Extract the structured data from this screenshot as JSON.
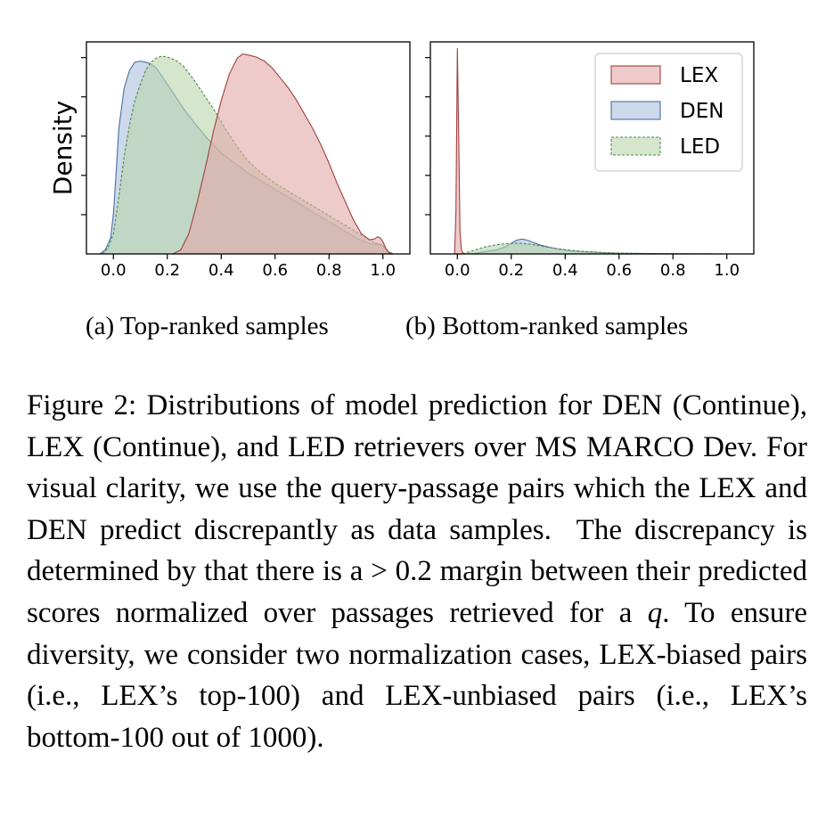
{
  "subcaptions": {
    "a": "(a) Top-ranked samples",
    "b": "(b) Bottom-ranked samples"
  },
  "caption": {
    "label": "Figure 2:",
    "text1": " Distributions of model prediction for DEN (Continue), LEX (Continue), and LED retrievers over MS MARCO Dev. For visual clarity, we use the query-passage pairs which the LEX and DEN predict discrepantly as data samples.  The discrepancy is determined by that there is a > 0.2 margin between their predicted scores normalized over passages retrieved for a ",
    "q": "q",
    "text2": ". To ensure diversity, we consider two normalization cases, LEX-biased pairs (i.e., LEX’s top-100) and LEX-unbiased pairs (i.e., LEX’s bottom-100 out of 1000)."
  },
  "colors": {
    "LEX": "#e3a9a9",
    "LEX_edge": "#a04040",
    "DEN": "#a9bfdc",
    "DEN_edge": "#4a6fa5",
    "LED": "#b9d6ac",
    "LED_edge": "#4f8a45"
  },
  "chart_data": [
    {
      "type": "area",
      "ylabel": "Density",
      "xlabel": "",
      "xlim": [
        -0.1,
        1.1
      ],
      "ylim": [
        0,
        1.05
      ],
      "xticks": [
        "0.0",
        "0.2",
        "0.4",
        "0.6",
        "0.8",
        "1.0"
      ],
      "yticks_labeled": false,
      "legend": "none",
      "series": [
        {
          "name": "LEX",
          "style": "solid",
          "x": [
            0.22,
            0.25,
            0.28,
            0.31,
            0.34,
            0.37,
            0.4,
            0.43,
            0.46,
            0.48,
            0.5,
            0.53,
            0.56,
            0.59,
            0.62,
            0.65,
            0.68,
            0.71,
            0.74,
            0.77,
            0.8,
            0.83,
            0.86,
            0.89,
            0.92,
            0.95,
            0.97,
            0.98,
            0.99,
            1.0,
            1.01,
            1.02,
            1.03
          ],
          "y": [
            0.0,
            0.02,
            0.1,
            0.25,
            0.42,
            0.6,
            0.76,
            0.89,
            0.97,
            0.99,
            0.985,
            0.975,
            0.955,
            0.92,
            0.87,
            0.82,
            0.76,
            0.69,
            0.62,
            0.54,
            0.45,
            0.35,
            0.26,
            0.17,
            0.1,
            0.07,
            0.075,
            0.085,
            0.08,
            0.06,
            0.03,
            0.01,
            0.0
          ]
        },
        {
          "name": "DEN",
          "style": "solid",
          "x": [
            -0.05,
            -0.03,
            -0.01,
            0.0,
            0.01,
            0.02,
            0.04,
            0.06,
            0.08,
            0.1,
            0.12,
            0.14,
            0.16,
            0.18,
            0.2,
            0.23,
            0.26,
            0.3,
            0.35,
            0.4,
            0.45,
            0.5,
            0.55,
            0.6,
            0.65,
            0.7,
            0.75,
            0.8,
            0.85,
            0.9,
            0.95,
            0.98,
            1.0,
            1.02,
            1.04
          ],
          "y": [
            0.0,
            0.02,
            0.08,
            0.2,
            0.4,
            0.62,
            0.82,
            0.91,
            0.95,
            0.955,
            0.95,
            0.94,
            0.92,
            0.88,
            0.84,
            0.78,
            0.72,
            0.65,
            0.57,
            0.5,
            0.45,
            0.4,
            0.36,
            0.32,
            0.28,
            0.24,
            0.2,
            0.16,
            0.12,
            0.08,
            0.05,
            0.05,
            0.04,
            0.01,
            0.0
          ]
        },
        {
          "name": "LED",
          "style": "dashed",
          "x": [
            -0.04,
            -0.02,
            0.0,
            0.02,
            0.04,
            0.06,
            0.08,
            0.1,
            0.12,
            0.14,
            0.16,
            0.18,
            0.2,
            0.23,
            0.26,
            0.3,
            0.34,
            0.38,
            0.42,
            0.46,
            0.5,
            0.55,
            0.6,
            0.65,
            0.7,
            0.75,
            0.8,
            0.85,
            0.9,
            0.95,
            0.98,
            1.0,
            1.02,
            1.04
          ],
          "y": [
            0.0,
            0.03,
            0.1,
            0.28,
            0.48,
            0.64,
            0.76,
            0.84,
            0.91,
            0.95,
            0.97,
            0.98,
            0.975,
            0.96,
            0.93,
            0.86,
            0.78,
            0.7,
            0.61,
            0.53,
            0.46,
            0.4,
            0.35,
            0.31,
            0.27,
            0.23,
            0.19,
            0.15,
            0.11,
            0.07,
            0.05,
            0.04,
            0.01,
            0.0
          ]
        }
      ]
    },
    {
      "type": "area",
      "ylabel": "",
      "xlabel": "",
      "xlim": [
        -0.1,
        1.1
      ],
      "ylim": [
        0,
        1.0
      ],
      "xticks": [
        "0.0",
        "0.2",
        "0.4",
        "0.6",
        "0.8",
        "1.0"
      ],
      "yticks_labeled": false,
      "legend": "top-right",
      "legend_entries": [
        "LEX",
        "DEN",
        "LED"
      ],
      "series": [
        {
          "name": "LEX",
          "style": "solid",
          "x": [
            -0.01,
            -0.005,
            0.0,
            0.005,
            0.01,
            0.015,
            0.02,
            0.03
          ],
          "y": [
            0.0,
            0.2,
            0.97,
            0.55,
            0.1,
            0.02,
            0.005,
            0.0
          ]
        },
        {
          "name": "DEN",
          "style": "solid",
          "x": [
            0.05,
            0.1,
            0.15,
            0.18,
            0.2,
            0.22,
            0.24,
            0.26,
            0.28,
            0.3,
            0.34,
            0.38,
            0.42,
            0.46,
            0.5,
            0.55,
            0.6,
            0.7,
            0.8,
            0.9,
            1.0,
            1.05
          ],
          "y": [
            0.0,
            0.01,
            0.02,
            0.035,
            0.05,
            0.065,
            0.07,
            0.065,
            0.055,
            0.045,
            0.032,
            0.022,
            0.015,
            0.01,
            0.008,
            0.005,
            0.003,
            0.002,
            0.001,
            0.0005,
            0.0002,
            0.0
          ]
        },
        {
          "name": "LED",
          "style": "dashed",
          "x": [
            0.02,
            0.05,
            0.08,
            0.11,
            0.14,
            0.17,
            0.2,
            0.23,
            0.26,
            0.29,
            0.32,
            0.36,
            0.4,
            0.45,
            0.5,
            0.55,
            0.6,
            0.7,
            0.8,
            0.9,
            1.0,
            1.05
          ],
          "y": [
            0.0,
            0.012,
            0.025,
            0.035,
            0.042,
            0.047,
            0.05,
            0.05,
            0.047,
            0.042,
            0.035,
            0.027,
            0.02,
            0.014,
            0.01,
            0.006,
            0.004,
            0.002,
            0.001,
            0.0005,
            0.0002,
            0.0
          ]
        }
      ]
    }
  ]
}
